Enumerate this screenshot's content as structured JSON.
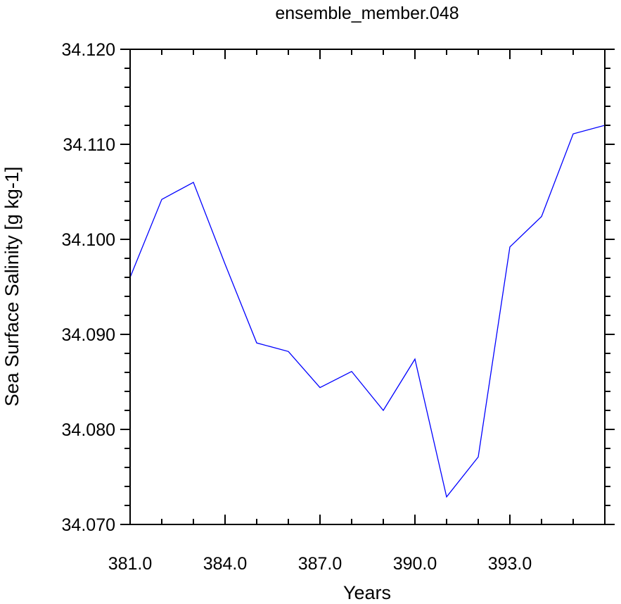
{
  "chart_data": {
    "type": "line",
    "title": "ensemble_member.048",
    "xlabel": "Years",
    "ylabel": "Sea Surface Salinity [g kg-1]",
    "xlim": [
      381.0,
      396.0
    ],
    "ylim": [
      34.07,
      34.12
    ],
    "x_ticks": [
      381.0,
      384.0,
      387.0,
      390.0,
      393.0
    ],
    "x_tick_labels": [
      "381.0",
      "384.0",
      "387.0",
      "390.0",
      "393.0"
    ],
    "y_ticks": [
      34.07,
      34.08,
      34.09,
      34.1,
      34.11,
      34.12
    ],
    "y_tick_labels": [
      "34.070",
      "34.080",
      "34.090",
      "34.100",
      "34.110",
      "34.120"
    ],
    "grid": false,
    "series": [
      {
        "color": "#0000ff",
        "x": [
          381,
          382,
          383,
          384,
          385,
          386,
          387,
          388,
          389,
          390,
          391,
          392,
          393,
          394,
          395,
          396
        ],
        "y": [
          34.096,
          34.1042,
          34.106,
          34.0974,
          34.0891,
          34.0882,
          34.0844,
          34.0861,
          34.082,
          34.0874,
          34.0729,
          34.0771,
          34.0992,
          34.1024,
          34.1111,
          34.112
        ]
      }
    ]
  }
}
